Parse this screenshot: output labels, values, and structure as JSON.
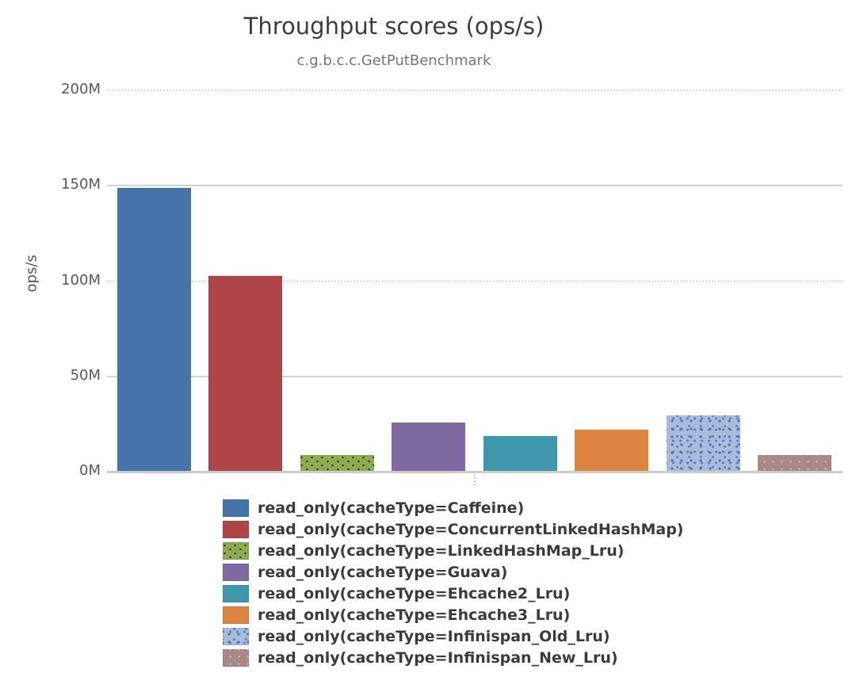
{
  "chart_data": {
    "type": "bar",
    "title": "Throughput scores (ops/s)",
    "subtitle": "c.g.b.c.c.GetPutBenchmark",
    "ylabel": "ops/s",
    "xlabel": "",
    "unit": "Mops/s",
    "ylim_mops": [
      0,
      200
    ],
    "ytick_step_mops": 50,
    "ytick_labels": [
      "0M",
      "50M",
      "100M",
      "150M",
      "200M"
    ],
    "grid": true,
    "legend_position": "bottom",
    "series": [
      {
        "label": "read_only(cacheType=Caffeine)",
        "value_mops": 148.3,
        "color": "#4673a8",
        "pattern": "solid"
      },
      {
        "label": "read_only(cacheType=ConcurrentLinkedHashMap)",
        "value_mops": 102.1,
        "color": "#ad4546",
        "pattern": "solid"
      },
      {
        "label": "read_only(cacheType=LinkedHashMap_Lru)",
        "value_mops": 8.4,
        "color": "#8dac52",
        "pattern": "dark-dots"
      },
      {
        "label": "read_only(cacheType=Guava)",
        "value_mops": 25.4,
        "color": "#7d6ba1",
        "pattern": "solid"
      },
      {
        "label": "read_only(cacheType=Ehcache2_Lru)",
        "value_mops": 18.4,
        "color": "#3f97ac",
        "pattern": "solid"
      },
      {
        "label": "read_only(cacheType=Ehcache3_Lru)",
        "value_mops": 21.7,
        "color": "#dd8442",
        "pattern": "solid"
      },
      {
        "label": "read_only(cacheType=Infinispan_Old_Lru)",
        "value_mops": 29.2,
        "color": "#abbbdb",
        "pattern": "speckle"
      },
      {
        "label": "read_only(cacheType=Infinispan_New_Lru)",
        "value_mops": 8.4,
        "color": "#aa8788",
        "pattern": "light-dots"
      }
    ]
  }
}
